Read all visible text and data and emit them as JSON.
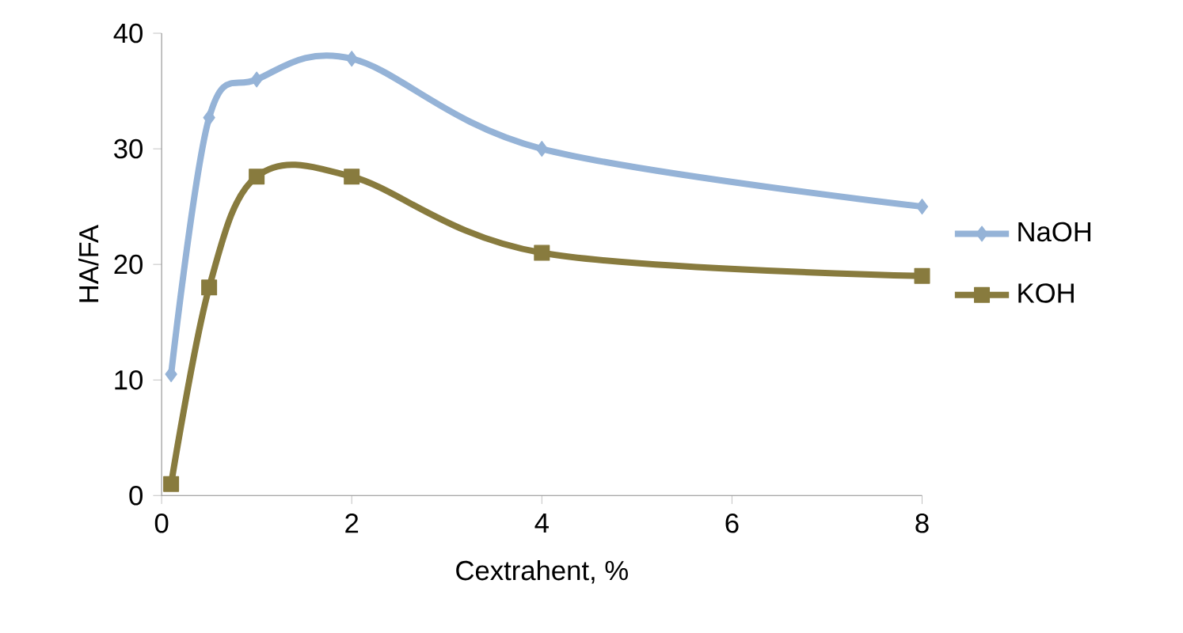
{
  "chart_data": {
    "type": "line",
    "xlabel": "Cextrahent, %",
    "ylabel": "HA/FA",
    "xlim": [
      0,
      8
    ],
    "xticks": [
      0,
      2,
      4,
      6,
      8
    ],
    "ylim": [
      0,
      40
    ],
    "yticks": [
      0,
      10,
      20,
      30,
      40
    ],
    "x": [
      0.1,
      0.5,
      1,
      2,
      4,
      8
    ],
    "series": [
      {
        "name": "NaOH",
        "color": "#95b3d7",
        "marker": "diamond",
        "values": [
          10.5,
          32.7,
          36,
          37.8,
          30,
          25
        ]
      },
      {
        "name": "KOH",
        "color": "#887b3e",
        "marker": "square",
        "values": [
          1,
          18,
          27.6,
          27.6,
          21,
          19
        ]
      }
    ],
    "grid": false,
    "legend": "right",
    "line_style": "solid"
  }
}
